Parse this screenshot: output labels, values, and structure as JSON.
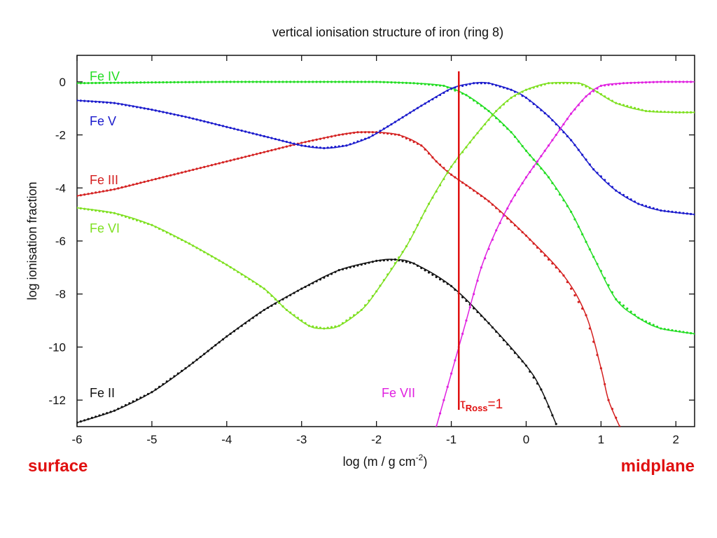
{
  "chart_data": {
    "type": "line",
    "title": "vertical ionisation structure of iron (ring 8)",
    "xlabel": "log (m / g cm",
    "xlabel_sup": "-2",
    "xlabel_close": ")",
    "ylabel": "log ionisation fraction",
    "xlim": [
      -6,
      2.25
    ],
    "ylim": [
      -13,
      1
    ],
    "xticks": [
      -6,
      -5,
      -4,
      -3,
      -2,
      -1,
      0,
      1,
      2
    ],
    "yticks": [
      0,
      -2,
      -4,
      -6,
      -8,
      -10,
      -12
    ],
    "grid": false,
    "series": [
      {
        "name": "Fe II",
        "color": "#111111",
        "points": [
          [
            -6,
            -12.85
          ],
          [
            -5.5,
            -12.4
          ],
          [
            -5,
            -11.7
          ],
          [
            -4.5,
            -10.7
          ],
          [
            -4,
            -9.6
          ],
          [
            -3.5,
            -8.6
          ],
          [
            -3,
            -7.8
          ],
          [
            -2.5,
            -7.1
          ],
          [
            -2,
            -6.75
          ],
          [
            -1.75,
            -6.7
          ],
          [
            -1.5,
            -6.85
          ],
          [
            -1,
            -7.7
          ],
          [
            -0.5,
            -9.1
          ],
          [
            0,
            -10.7
          ],
          [
            0.2,
            -11.6
          ],
          [
            0.4,
            -12.9
          ]
        ]
      },
      {
        "name": "Fe III",
        "color": "#d42020",
        "points": [
          [
            -6,
            -4.3
          ],
          [
            -5.5,
            -4.05
          ],
          [
            -5,
            -3.7
          ],
          [
            -4.5,
            -3.35
          ],
          [
            -4,
            -3.0
          ],
          [
            -3.5,
            -2.65
          ],
          [
            -3,
            -2.3
          ],
          [
            -2.5,
            -2.0
          ],
          [
            -2.25,
            -1.9
          ],
          [
            -2,
            -1.9
          ],
          [
            -1.7,
            -2.0
          ],
          [
            -1.4,
            -2.4
          ],
          [
            -1.2,
            -3.0
          ],
          [
            -1,
            -3.5
          ],
          [
            -0.5,
            -4.5
          ],
          [
            0,
            -5.8
          ],
          [
            0.5,
            -7.3
          ],
          [
            0.8,
            -8.8
          ],
          [
            1,
            -10.8
          ],
          [
            1.1,
            -12.0
          ],
          [
            1.25,
            -13.0
          ]
        ]
      },
      {
        "name": "Fe IV",
        "color": "#22dd22",
        "points": [
          [
            -6,
            -0.05
          ],
          [
            -5,
            -0.02
          ],
          [
            -4,
            0
          ],
          [
            -3,
            0
          ],
          [
            -2,
            0
          ],
          [
            -1.5,
            -0.05
          ],
          [
            -1.1,
            -0.15
          ],
          [
            -0.8,
            -0.5
          ],
          [
            -0.5,
            -1.1
          ],
          [
            -0.2,
            -1.9
          ],
          [
            0,
            -2.6
          ],
          [
            0.3,
            -3.6
          ],
          [
            0.6,
            -4.9
          ],
          [
            0.9,
            -6.6
          ],
          [
            1.2,
            -8.2
          ],
          [
            1.5,
            -8.9
          ],
          [
            1.8,
            -9.3
          ],
          [
            2.25,
            -9.5
          ]
        ]
      },
      {
        "name": "Fe V",
        "color": "#1a1acc",
        "points": [
          [
            -6,
            -0.7
          ],
          [
            -5.5,
            -0.8
          ],
          [
            -5,
            -1.05
          ],
          [
            -4.5,
            -1.35
          ],
          [
            -4,
            -1.7
          ],
          [
            -3.5,
            -2.05
          ],
          [
            -3,
            -2.4
          ],
          [
            -2.7,
            -2.5
          ],
          [
            -2.4,
            -2.4
          ],
          [
            -2.1,
            -2.1
          ],
          [
            -1.8,
            -1.6
          ],
          [
            -1.4,
            -0.9
          ],
          [
            -1,
            -0.25
          ],
          [
            -0.7,
            -0.05
          ],
          [
            -0.5,
            -0.05
          ],
          [
            -0.2,
            -0.3
          ],
          [
            0,
            -0.6
          ],
          [
            0.3,
            -1.3
          ],
          [
            0.6,
            -2.2
          ],
          [
            0.9,
            -3.3
          ],
          [
            1.2,
            -4.1
          ],
          [
            1.5,
            -4.6
          ],
          [
            1.8,
            -4.85
          ],
          [
            2.25,
            -5.0
          ]
        ]
      },
      {
        "name": "Fe VI",
        "color": "#7ee020",
        "points": [
          [
            -6,
            -4.75
          ],
          [
            -5.5,
            -4.95
          ],
          [
            -5,
            -5.4
          ],
          [
            -4.5,
            -6.1
          ],
          [
            -4,
            -6.9
          ],
          [
            -3.5,
            -7.8
          ],
          [
            -3.2,
            -8.6
          ],
          [
            -2.9,
            -9.2
          ],
          [
            -2.7,
            -9.3
          ],
          [
            -2.5,
            -9.2
          ],
          [
            -2.2,
            -8.6
          ],
          [
            -2,
            -7.9
          ],
          [
            -1.6,
            -6.2
          ],
          [
            -1.3,
            -4.6
          ],
          [
            -1,
            -3.2
          ],
          [
            -0.7,
            -2.1
          ],
          [
            -0.4,
            -1.1
          ],
          [
            -0.2,
            -0.6
          ],
          [
            0,
            -0.3
          ],
          [
            0.3,
            -0.05
          ],
          [
            0.7,
            -0.05
          ],
          [
            0.9,
            -0.3
          ],
          [
            1.2,
            -0.8
          ],
          [
            1.6,
            -1.1
          ],
          [
            2,
            -1.15
          ],
          [
            2.25,
            -1.15
          ]
        ]
      },
      {
        "name": "Fe VII",
        "color": "#e020e0",
        "points": [
          [
            -1.2,
            -13.0
          ],
          [
            -1.0,
            -11.0
          ],
          [
            -0.8,
            -9.0
          ],
          [
            -0.6,
            -7.0
          ],
          [
            -0.4,
            -5.6
          ],
          [
            -0.2,
            -4.5
          ],
          [
            0,
            -3.6
          ],
          [
            0.2,
            -2.8
          ],
          [
            0.4,
            -2.0
          ],
          [
            0.6,
            -1.2
          ],
          [
            0.8,
            -0.55
          ],
          [
            1.0,
            -0.15
          ],
          [
            1.3,
            -0.05
          ],
          [
            1.8,
            0
          ],
          [
            2.25,
            0
          ]
        ]
      }
    ],
    "annotations": {
      "tau_line_x": -0.9,
      "tau_line_ytop": 0.4,
      "tau_symbol": "τ",
      "tau_sub": "Ross",
      "tau_eq": "=1"
    }
  },
  "labels": {
    "surface": "surface",
    "midplane": "midplane"
  }
}
